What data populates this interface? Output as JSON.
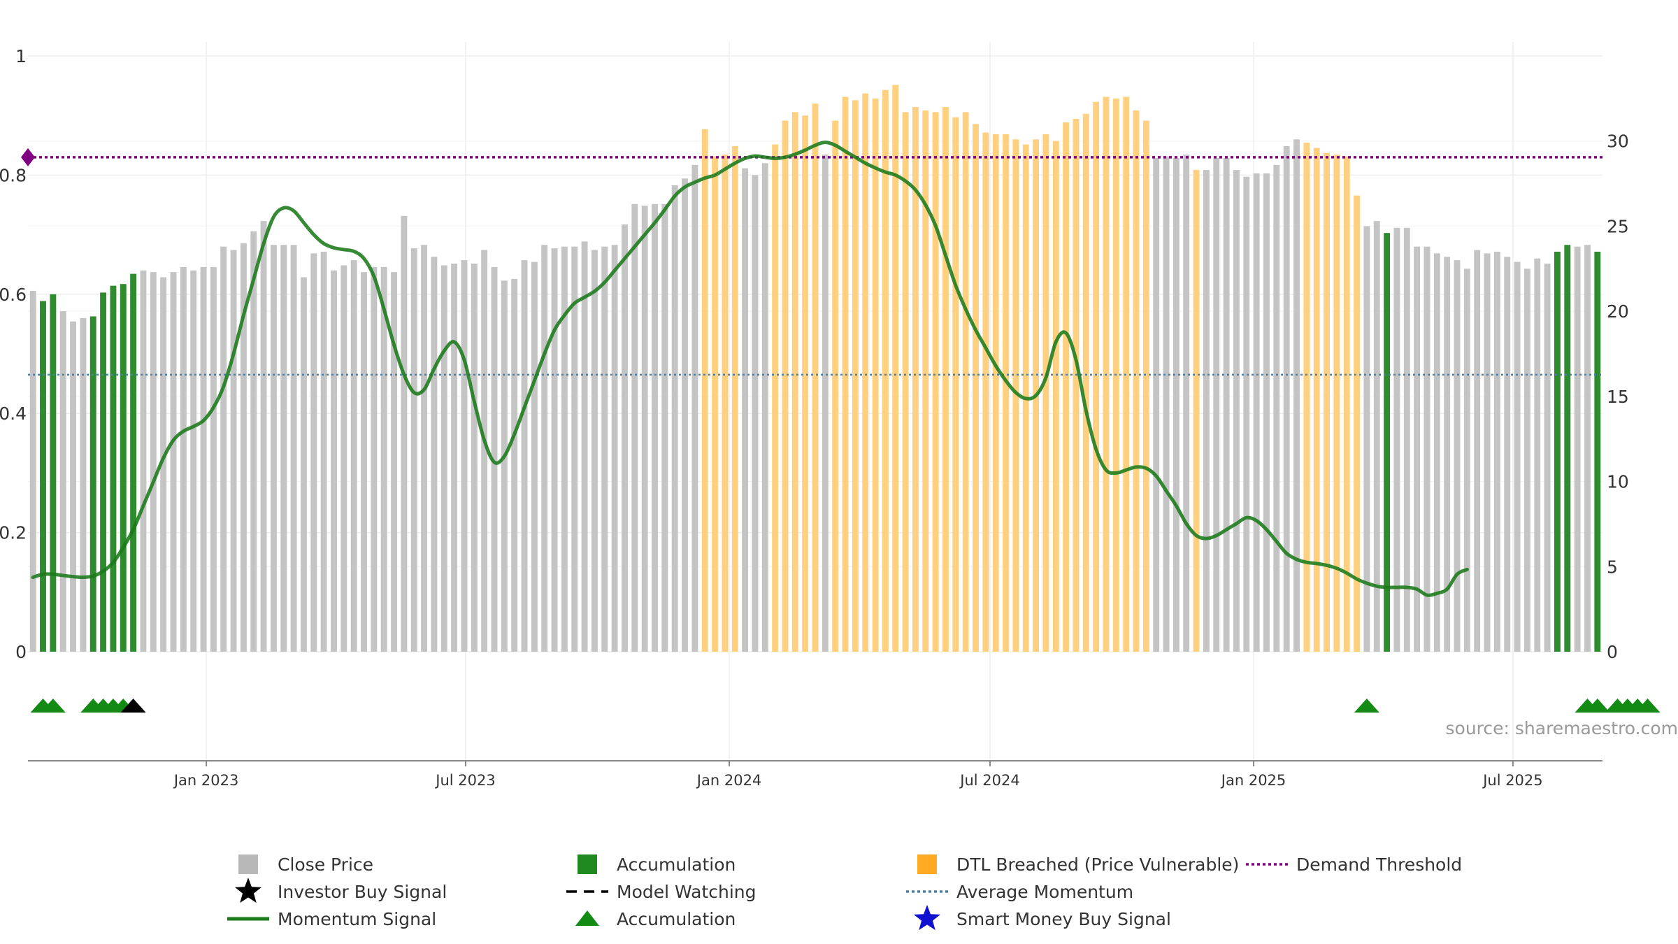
{
  "chart_data": {
    "type": "bar",
    "x_start": "2022-09-02",
    "x_step_days": 7,
    "close_price": [
      21.2,
      20.6,
      21.0,
      20.0,
      19.4,
      19.6,
      19.7,
      21.1,
      21.5,
      21.6,
      22.2,
      22.4,
      22.3,
      22.0,
      22.3,
      22.6,
      22.4,
      22.6,
      22.6,
      23.8,
      23.6,
      24.0,
      24.7,
      25.3,
      23.9,
      23.9,
      23.9,
      22.0,
      23.4,
      23.5,
      22.4,
      22.7,
      23.0,
      22.3,
      22.6,
      22.6,
      22.3,
      25.6,
      23.7,
      23.9,
      23.2,
      22.7,
      22.8,
      23.0,
      22.8,
      23.6,
      22.6,
      21.8,
      21.9,
      23.0,
      22.9,
      23.9,
      23.7,
      23.8,
      23.8,
      24.1,
      23.6,
      23.8,
      23.9,
      25.1,
      26.3,
      26.2,
      26.3,
      26.3,
      27.4,
      27.8,
      28.6,
      30.7,
      29.1,
      29.2,
      29.7,
      28.4,
      28.0,
      28.7,
      29.8,
      31.2,
      31.7,
      31.5,
      32.2,
      29.2,
      31.2,
      32.6,
      32.4,
      32.8,
      32.5,
      33.0,
      33.3,
      31.7,
      32.0,
      31.8,
      31.7,
      32.0,
      31.4,
      31.7,
      31.0,
      30.5,
      30.4,
      30.4,
      30.1,
      29.8,
      30.1,
      30.4,
      30.0,
      31.1,
      31.3,
      31.6,
      32.3,
      32.6,
      32.5,
      32.6,
      31.8,
      31.2,
      29.0,
      29.1,
      29.0,
      29.2,
      28.3,
      28.3,
      29.0,
      29.0,
      28.3,
      27.9,
      28.1,
      28.1,
      28.6,
      29.7,
      30.1,
      29.9,
      29.6,
      29.3,
      29.2,
      29.1,
      26.8,
      25.0,
      25.3,
      24.6,
      24.9,
      24.9,
      23.8,
      23.8,
      23.4,
      23.2,
      23.0,
      22.5,
      23.6,
      23.4,
      23.5,
      23.2,
      22.9,
      22.5,
      23.1,
      22.8,
      23.5,
      23.9,
      23.8,
      23.9,
      23.5
    ],
    "price_status": [
      "gray",
      "green",
      "green",
      "gray",
      "gray",
      "gray",
      "green",
      "green",
      "green",
      "green",
      "green",
      "gray",
      "gray",
      "gray",
      "gray",
      "gray",
      "gray",
      "gray",
      "gray",
      "gray",
      "gray",
      "gray",
      "gray",
      "gray",
      "gray",
      "gray",
      "gray",
      "gray",
      "gray",
      "gray",
      "gray",
      "gray",
      "gray",
      "gray",
      "gray",
      "gray",
      "gray",
      "gray",
      "gray",
      "gray",
      "gray",
      "gray",
      "gray",
      "gray",
      "gray",
      "gray",
      "gray",
      "gray",
      "gray",
      "gray",
      "gray",
      "gray",
      "gray",
      "gray",
      "gray",
      "gray",
      "gray",
      "gray",
      "gray",
      "gray",
      "gray",
      "gray",
      "gray",
      "gray",
      "gray",
      "gray",
      "gray",
      "orange",
      "orange",
      "orange",
      "orange",
      "gray",
      "gray",
      "gray",
      "orange",
      "orange",
      "orange",
      "orange",
      "orange",
      "gray",
      "orange",
      "orange",
      "orange",
      "orange",
      "orange",
      "orange",
      "orange",
      "orange",
      "orange",
      "orange",
      "orange",
      "orange",
      "orange",
      "orange",
      "orange",
      "orange",
      "orange",
      "orange",
      "orange",
      "orange",
      "orange",
      "orange",
      "orange",
      "orange",
      "orange",
      "orange",
      "orange",
      "orange",
      "orange",
      "orange",
      "orange",
      "orange",
      "gray",
      "gray",
      "gray",
      "gray",
      "orange",
      "gray",
      "gray",
      "gray",
      "gray",
      "gray",
      "gray",
      "gray",
      "gray",
      "gray",
      "gray",
      "orange",
      "orange",
      "orange",
      "orange",
      "orange",
      "orange",
      "gray",
      "gray",
      "green",
      "gray",
      "gray",
      "gray",
      "gray",
      "gray",
      "gray",
      "gray",
      "gray",
      "gray",
      "gray",
      "gray",
      "gray",
      "gray",
      "gray",
      "gray",
      "gray",
      "green",
      "green",
      "gray",
      "gray",
      "green",
      "green",
      "green",
      "green"
    ],
    "momentum": [
      0.125,
      0.13,
      0.13,
      0.128,
      0.126,
      0.125,
      0.127,
      0.135,
      0.15,
      0.175,
      0.205,
      0.245,
      0.285,
      0.325,
      0.355,
      0.37,
      0.378,
      0.388,
      0.41,
      0.445,
      0.5,
      0.565,
      0.625,
      0.685,
      0.73,
      0.745,
      0.74,
      0.72,
      0.7,
      0.685,
      0.678,
      0.675,
      0.672,
      0.66,
      0.63,
      0.575,
      0.515,
      0.465,
      0.435,
      0.44,
      0.475,
      0.505,
      0.52,
      0.49,
      0.42,
      0.355,
      0.318,
      0.328,
      0.365,
      0.41,
      0.455,
      0.5,
      0.54,
      0.565,
      0.585,
      0.595,
      0.605,
      0.62,
      0.64,
      0.66,
      0.68,
      0.7,
      0.72,
      0.742,
      0.765,
      0.78,
      0.788,
      0.795,
      0.8,
      0.81,
      0.82,
      0.828,
      0.832,
      0.83,
      0.828,
      0.83,
      0.835,
      0.842,
      0.85,
      0.855,
      0.85,
      0.84,
      0.83,
      0.82,
      0.812,
      0.805,
      0.8,
      0.79,
      0.775,
      0.75,
      0.715,
      0.665,
      0.615,
      0.575,
      0.54,
      0.51,
      0.48,
      0.455,
      0.435,
      0.425,
      0.43,
      0.46,
      0.52,
      0.535,
      0.49,
      0.405,
      0.34,
      0.305,
      0.3,
      0.305,
      0.31,
      0.308,
      0.295,
      0.27,
      0.245,
      0.215,
      0.195,
      0.19,
      0.195,
      0.205,
      0.215,
      0.225,
      0.22,
      0.205,
      0.185,
      0.165,
      0.155,
      0.15,
      0.148,
      0.145,
      0.14,
      0.132,
      0.122,
      0.115,
      0.11,
      0.108,
      0.108,
      0.108,
      0.105,
      0.095,
      0.098,
      0.105,
      0.13,
      0.138
    ],
    "accumulation_markers": [
      1,
      2,
      6,
      7,
      8,
      9,
      155,
      156,
      158,
      159,
      160,
      161,
      133
    ],
    "investor_buy_markers": [
      10
    ],
    "demand_threshold": 0.83,
    "average_momentum": 0.465,
    "y_left": {
      "ticks": [
        0,
        0.2,
        0.4,
        0.6,
        0.8,
        1
      ],
      "labels": [
        "0",
        "0.2",
        "0.4",
        "0.6",
        "0.8",
        "1"
      ],
      "range": [
        0,
        1
      ]
    },
    "y_right": {
      "ticks": [
        0,
        5,
        10,
        15,
        20,
        25,
        30
      ],
      "labels": [
        "0",
        "5",
        "10",
        "15",
        "20",
        "25",
        "30"
      ],
      "range": [
        0,
        35
      ]
    },
    "x_ticks": [
      {
        "date": "2023-01-01",
        "label": "Jan 2023"
      },
      {
        "date": "2023-07-01",
        "label": "Jul 2023"
      },
      {
        "date": "2024-01-01",
        "label": "Jan 2024"
      },
      {
        "date": "2024-07-01",
        "label": "Jul 2024"
      },
      {
        "date": "2025-01-01",
        "label": "Jan 2025"
      },
      {
        "date": "2025-07-01",
        "label": "Jul 2025"
      }
    ],
    "colors": {
      "gray": "#c4c4c4",
      "green": "#2e8b2e",
      "orange": "#ffd080",
      "momentum": "#1a7a1a",
      "threshold": "#800080",
      "average": "#4a7fa8",
      "marker_green": "#138a13",
      "marker_black": "#000000",
      "star_blue": "#1010d0"
    }
  },
  "legend": [
    {
      "label": "Close Price",
      "symbol": "square",
      "color": "#b8b8b8"
    },
    {
      "label": "Investor Buy Signal",
      "symbol": "star",
      "color": "#000000"
    },
    {
      "label": "Momentum Signal",
      "symbol": "line",
      "color": "#1a7a1a"
    },
    {
      "label": "Accumulation",
      "symbol": "square",
      "color": "#1f8a1f"
    },
    {
      "label": "Model Watching",
      "symbol": "dash",
      "color": "#000000"
    },
    {
      "label": "Accumulation",
      "symbol": "triangle",
      "color": "#138a13"
    },
    {
      "label": "DTL Breached (Price Vulnerable)",
      "symbol": "square",
      "color": "#ffaa22"
    },
    {
      "label": "Average Momentum",
      "symbol": "dotted",
      "color": "#4a7fa8"
    },
    {
      "label": "Smart Money Buy Signal",
      "symbol": "star",
      "color": "#1010d0"
    },
    {
      "label": "Demand Threshold",
      "symbol": "dotted",
      "color": "#800080"
    }
  ],
  "source": "source: sharemaestro.com"
}
